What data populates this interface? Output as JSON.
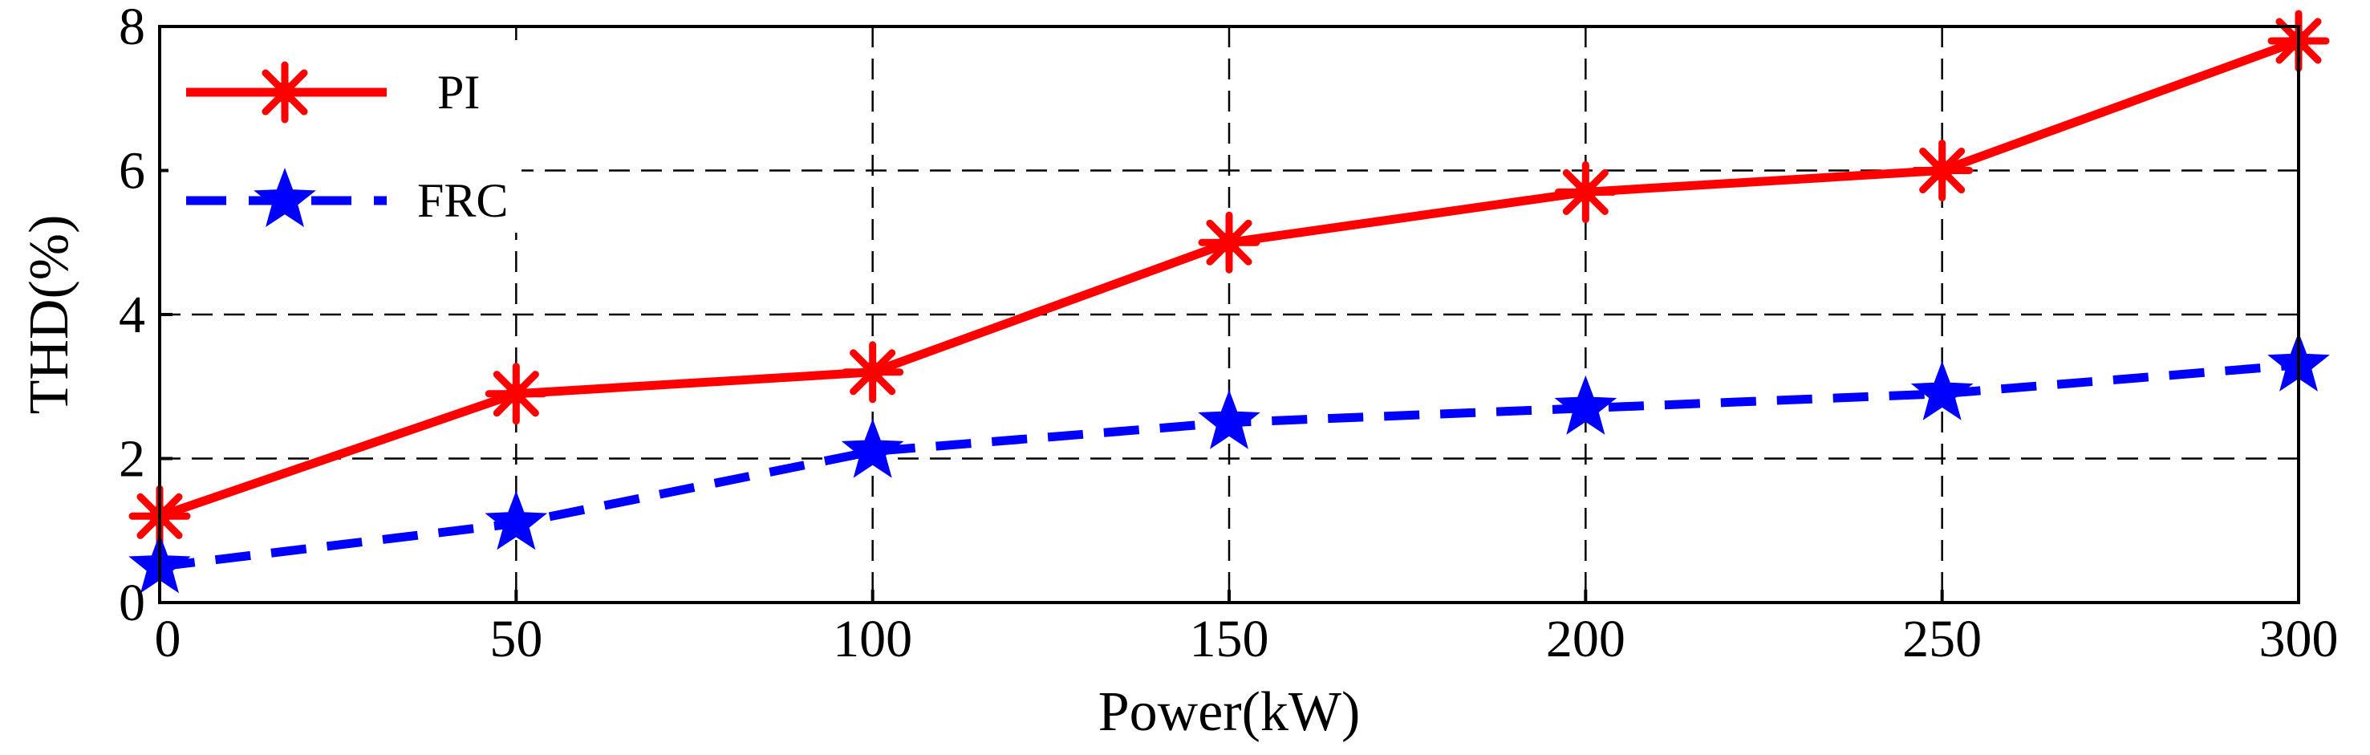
{
  "chart_data": {
    "type": "line",
    "title": "",
    "xlabel": "Power(kW)",
    "ylabel": "THD(%)",
    "xlim": [
      0,
      300
    ],
    "ylim": [
      0,
      8
    ],
    "x": [
      0,
      50,
      100,
      150,
      200,
      250,
      300
    ],
    "xticks": [
      "0",
      "50",
      "100",
      "150",
      "200",
      "250",
      "300"
    ],
    "yticks": [
      "0",
      "2",
      "4",
      "6",
      "8"
    ],
    "grid": true,
    "legend_position": "top-left",
    "series": [
      {
        "name": "PI",
        "color": "#ff0000",
        "line_style": "solid",
        "marker": "asterisk",
        "values": [
          1.2,
          2.9,
          3.2,
          5.0,
          5.7,
          6.0,
          7.8
        ]
      },
      {
        "name": "FRC",
        "color": "#0000ff",
        "line_style": "dashed",
        "marker": "star",
        "values": [
          0.5,
          1.1,
          2.1,
          2.5,
          2.7,
          2.9,
          3.3
        ]
      }
    ]
  }
}
